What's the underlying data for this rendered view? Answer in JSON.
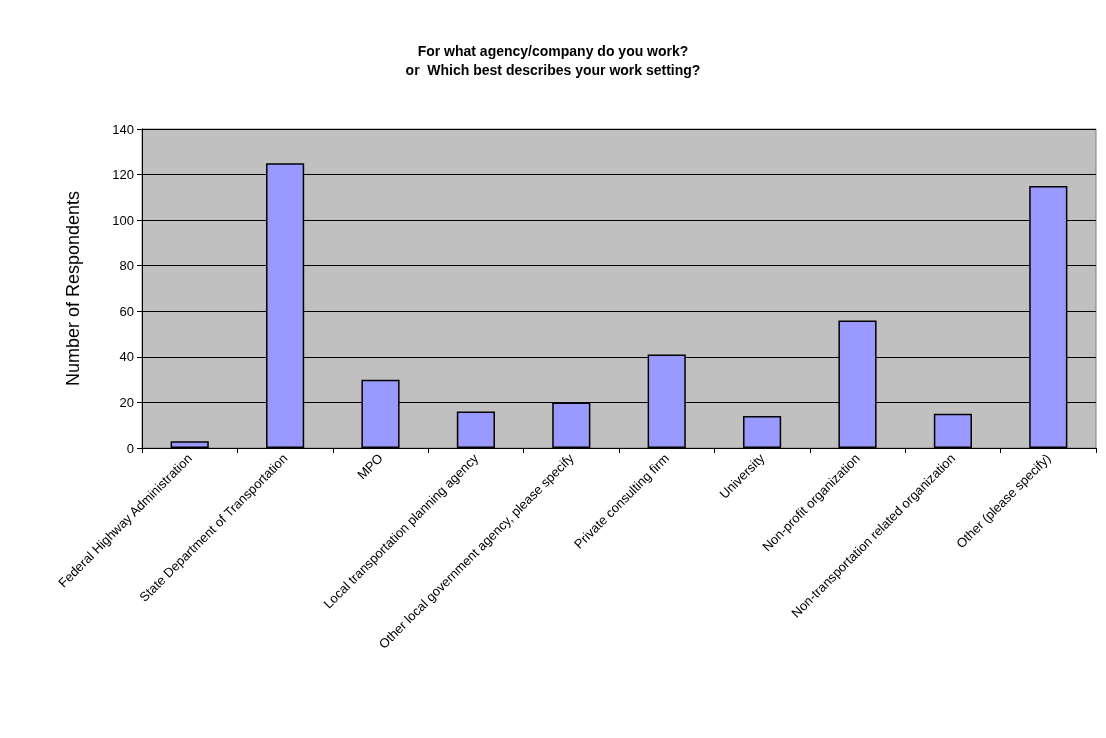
{
  "chart_data": {
    "type": "bar",
    "title": "For what agency/company do you work?\nor  Which best describes your work setting?",
    "ylabel": "Number of Respondents",
    "categories": [
      "Federal Highway Administration",
      "State Department of Transportation",
      "MPO",
      "Local transportation planning agency",
      "Other local government agency, please specify",
      "Private consulting firm",
      "University",
      "Non-profit organization",
      "Non-transportation related organization",
      "Other (please specify)"
    ],
    "values": [
      3,
      125,
      30,
      16,
      20,
      41,
      14,
      56,
      15,
      115
    ],
    "color": "#9999ff",
    "ylim": [
      0,
      140
    ],
    "yticks": [
      0,
      20,
      40,
      60,
      80,
      100,
      120,
      140
    ],
    "grid": "y"
  }
}
